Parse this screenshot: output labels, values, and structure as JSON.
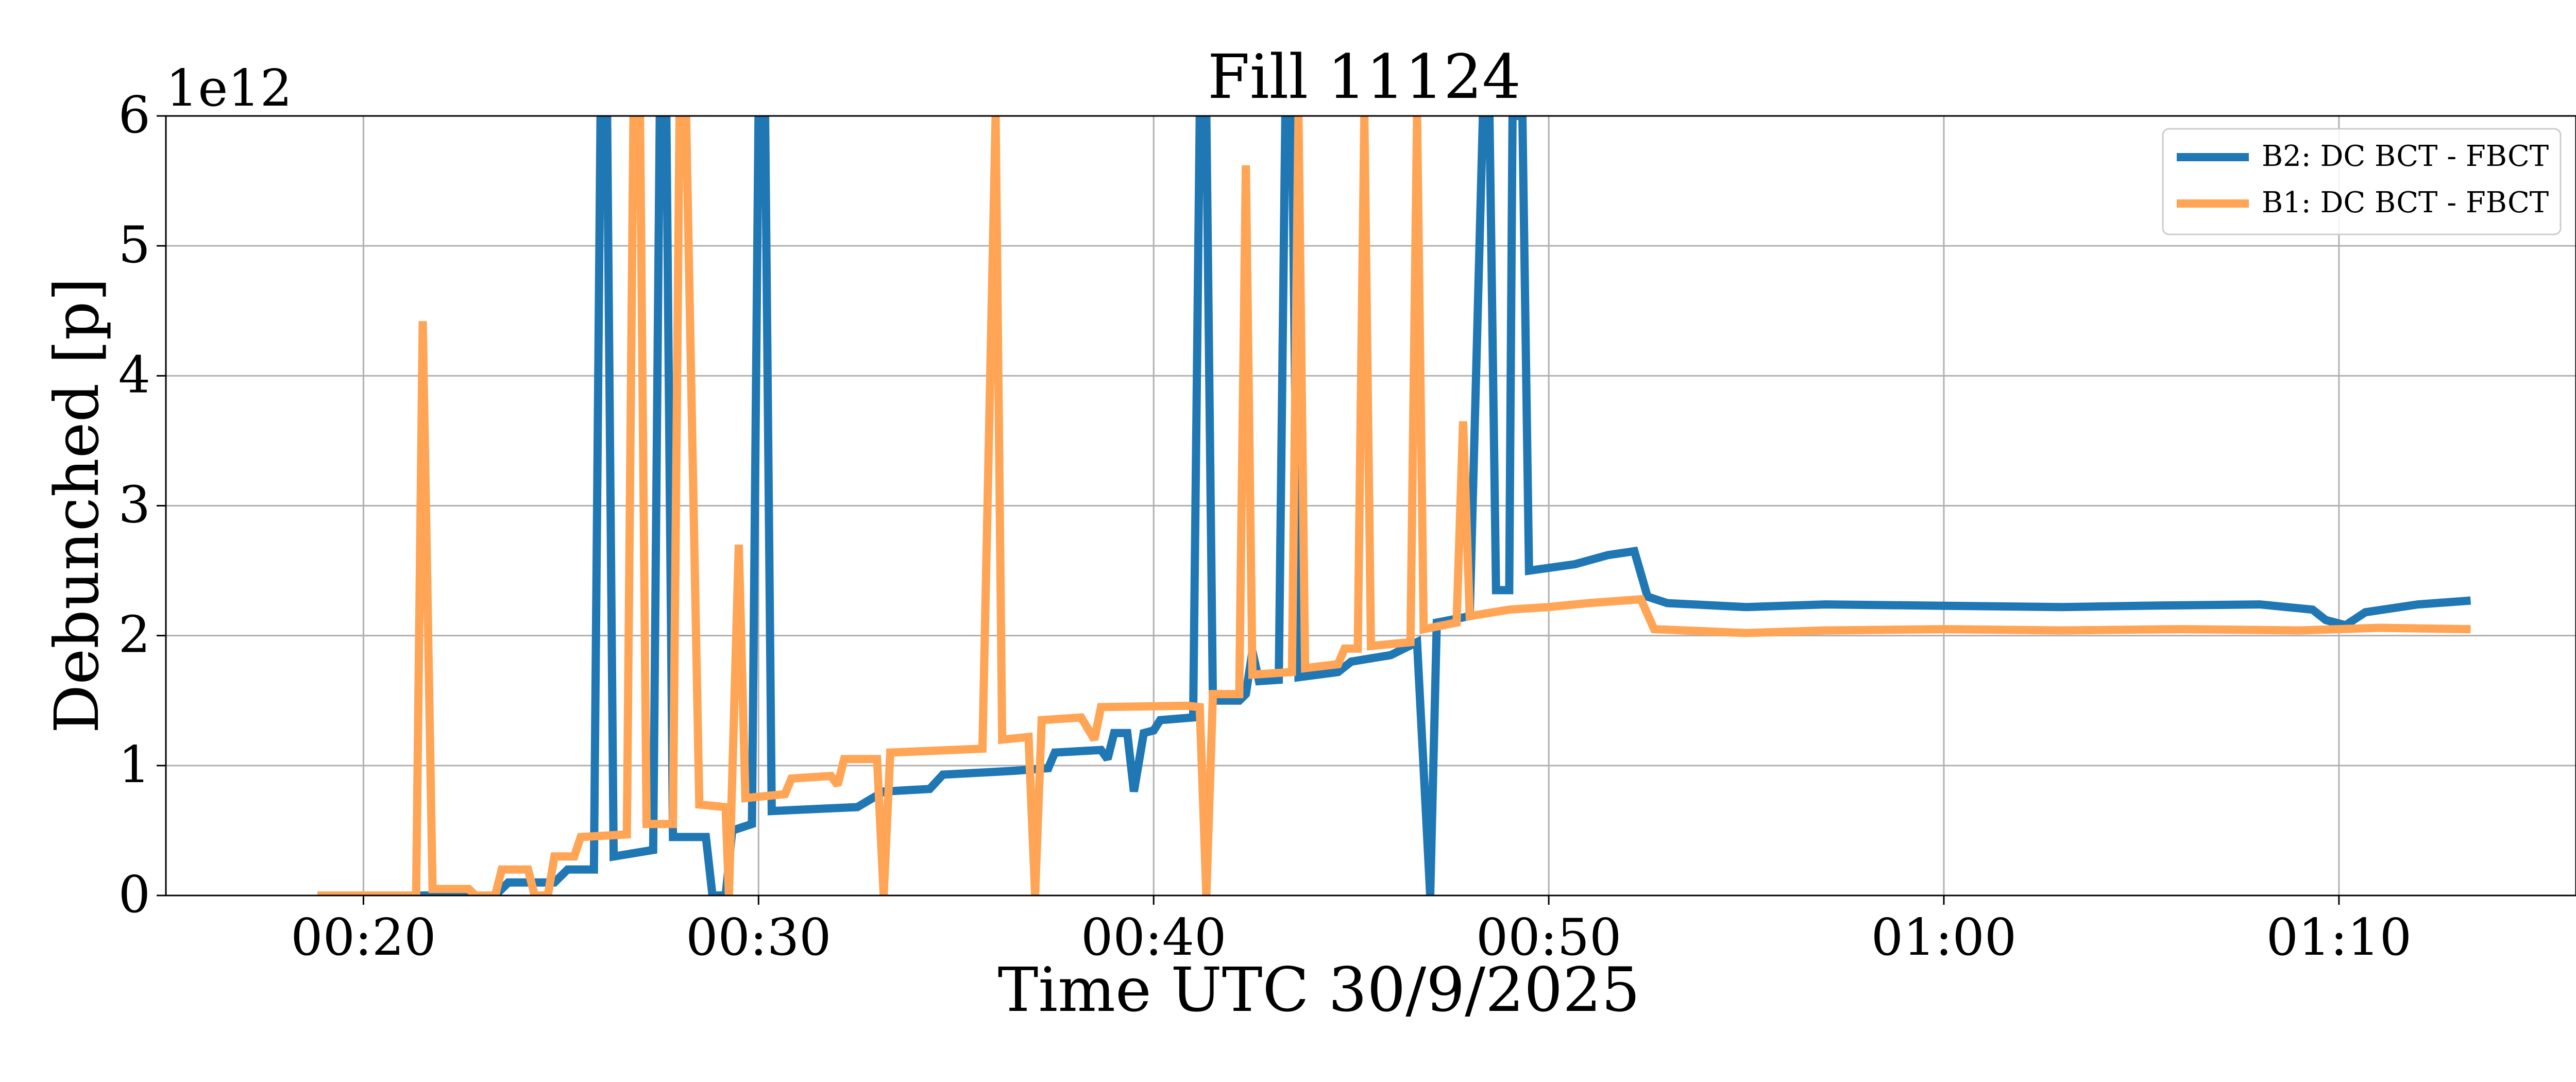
{
  "chart_data": {
    "type": "line",
    "title": "Fill 11124",
    "xlabel": "Time UTC 30/9/2025",
    "ylabel": "Debunched [p]",
    "y_offset_label": "1e12",
    "xlim": [
      "00:15",
      "01:16"
    ],
    "ylim": [
      0,
      6
    ],
    "x_ticks": [
      "00:20",
      "00:30",
      "00:40",
      "00:50",
      "01:00",
      "01:10"
    ],
    "y_ticks": [
      0,
      1,
      2,
      3,
      4,
      5,
      6
    ],
    "y_unit_scale": 1000000000000.0,
    "grid": true,
    "legend_position": "top-right",
    "series": [
      {
        "name": "B2: DC BCT - FBCT",
        "color": "#1f77b4",
        "points": [
          [
            "00:18:50",
            0.0
          ],
          [
            "00:23:20",
            0.0
          ],
          [
            "00:23:40",
            0.1
          ],
          [
            "00:24:50",
            0.1
          ],
          [
            "00:25:10",
            0.2
          ],
          [
            "00:25:50",
            0.2
          ],
          [
            "00:26:00",
            6.0
          ],
          [
            "00:26:10",
            6.0
          ],
          [
            "00:26:20",
            0.3
          ],
          [
            "00:27:20",
            0.35
          ],
          [
            "00:27:30",
            6.0
          ],
          [
            "00:27:40",
            6.0
          ],
          [
            "00:27:50",
            0.45
          ],
          [
            "00:28:40",
            0.45
          ],
          [
            "00:28:50",
            0.0
          ],
          [
            "00:29:10",
            0.0
          ],
          [
            "00:29:20",
            0.5
          ],
          [
            "00:29:50",
            0.55
          ],
          [
            "00:30:00",
            6.0
          ],
          [
            "00:30:10",
            6.0
          ],
          [
            "00:30:20",
            0.65
          ],
          [
            "00:32:30",
            0.68
          ],
          [
            "00:33:10",
            0.8
          ],
          [
            "00:34:20",
            0.82
          ],
          [
            "00:34:40",
            0.93
          ],
          [
            "00:36:30",
            0.96
          ],
          [
            "00:37:20",
            0.98
          ],
          [
            "00:37:30",
            1.1
          ],
          [
            "00:38:40",
            1.12
          ],
          [
            "00:38:50",
            1.05
          ],
          [
            "00:39:00",
            1.25
          ],
          [
            "00:39:20",
            1.25
          ],
          [
            "00:39:30",
            0.8
          ],
          [
            "00:39:45",
            1.25
          ],
          [
            "00:40:00",
            1.27
          ],
          [
            "00:40:10",
            1.35
          ],
          [
            "00:41:00",
            1.37
          ],
          [
            "00:41:10",
            6.0
          ],
          [
            "00:41:20",
            6.0
          ],
          [
            "00:41:30",
            1.5
          ],
          [
            "00:42:10",
            1.5
          ],
          [
            "00:42:20",
            1.55
          ],
          [
            "00:42:30",
            1.88
          ],
          [
            "00:42:40",
            1.65
          ],
          [
            "00:43:10",
            1.66
          ],
          [
            "00:43:20",
            6.0
          ],
          [
            "00:43:30",
            6.0
          ],
          [
            "00:43:40",
            1.68
          ],
          [
            "00:44:40",
            1.72
          ],
          [
            "00:45:00",
            1.8
          ],
          [
            "00:46:00",
            1.85
          ],
          [
            "00:46:20",
            1.9
          ],
          [
            "00:46:40",
            1.95
          ],
          [
            "00:47:00",
            0.0
          ],
          [
            "00:47:10",
            2.1
          ],
          [
            "00:48:00",
            2.15
          ],
          [
            "00:48:20",
            6.0
          ],
          [
            "00:48:30",
            6.0
          ],
          [
            "00:48:40",
            2.35
          ],
          [
            "00:49:00",
            2.35
          ],
          [
            "00:49:05",
            6.0
          ],
          [
            "00:49:20",
            6.0
          ],
          [
            "00:49:30",
            2.5
          ],
          [
            "00:50:40",
            2.55
          ],
          [
            "00:51:30",
            2.62
          ],
          [
            "00:52:10",
            2.65
          ],
          [
            "00:52:30",
            2.3
          ],
          [
            "00:53:00",
            2.25
          ],
          [
            "00:55:00",
            2.22
          ],
          [
            "00:57:00",
            2.24
          ],
          [
            "01:00:00",
            2.23
          ],
          [
            "01:03:00",
            2.22
          ],
          [
            "01:05:00",
            2.23
          ],
          [
            "01:08:00",
            2.24
          ],
          [
            "01:09:20",
            2.2
          ],
          [
            "01:09:40",
            2.12
          ],
          [
            "01:10:10",
            2.08
          ],
          [
            "01:10:40",
            2.18
          ],
          [
            "01:12:00",
            2.24
          ],
          [
            "01:13:20",
            2.27
          ]
        ]
      },
      {
        "name": "B1: DC BCT - FBCT",
        "color": "#ffa555",
        "points": [
          [
            "00:18:50",
            0.0
          ],
          [
            "00:21:20",
            0.0
          ],
          [
            "00:21:30",
            4.42
          ],
          [
            "00:21:45",
            0.05
          ],
          [
            "00:22:40",
            0.05
          ],
          [
            "00:22:50",
            0.0
          ],
          [
            "00:23:20",
            0.0
          ],
          [
            "00:23:30",
            0.2
          ],
          [
            "00:24:10",
            0.2
          ],
          [
            "00:24:20",
            0.0
          ],
          [
            "00:24:40",
            0.0
          ],
          [
            "00:24:50",
            0.3
          ],
          [
            "00:25:20",
            0.3
          ],
          [
            "00:25:30",
            0.45
          ],
          [
            "00:26:40",
            0.47
          ],
          [
            "00:26:50",
            6.0
          ],
          [
            "00:27:00",
            6.0
          ],
          [
            "00:27:10",
            0.55
          ],
          [
            "00:27:50",
            0.55
          ],
          [
            "00:28:00",
            6.0
          ],
          [
            "00:28:10",
            6.0
          ],
          [
            "00:28:30",
            0.7
          ],
          [
            "00:29:10",
            0.68
          ],
          [
            "00:29:15",
            0.0
          ],
          [
            "00:29:30",
            2.7
          ],
          [
            "00:29:40",
            0.75
          ],
          [
            "00:30:40",
            0.78
          ],
          [
            "00:30:50",
            0.9
          ],
          [
            "00:31:50",
            0.92
          ],
          [
            "00:32:00",
            0.85
          ],
          [
            "00:32:10",
            1.05
          ],
          [
            "00:33:00",
            1.05
          ],
          [
            "00:33:10",
            0.0
          ],
          [
            "00:33:20",
            1.1
          ],
          [
            "00:35:40",
            1.13
          ],
          [
            "00:36:00",
            6.0
          ],
          [
            "00:36:10",
            1.2
          ],
          [
            "00:36:50",
            1.22
          ],
          [
            "00:37:00",
            0.0
          ],
          [
            "00:37:10",
            1.35
          ],
          [
            "00:38:10",
            1.37
          ],
          [
            "00:38:30",
            1.2
          ],
          [
            "00:38:40",
            1.45
          ],
          [
            "00:40:50",
            1.46
          ],
          [
            "00:41:10",
            1.45
          ],
          [
            "00:41:20",
            0.0
          ],
          [
            "00:41:30",
            1.55
          ],
          [
            "00:42:10",
            1.55
          ],
          [
            "00:42:20",
            5.62
          ],
          [
            "00:42:30",
            1.7
          ],
          [
            "00:43:30",
            1.72
          ],
          [
            "00:43:40",
            6.0
          ],
          [
            "00:43:50",
            1.75
          ],
          [
            "00:44:40",
            1.78
          ],
          [
            "00:44:50",
            1.9
          ],
          [
            "00:45:10",
            1.9
          ],
          [
            "00:45:20",
            6.0
          ],
          [
            "00:45:30",
            1.92
          ],
          [
            "00:46:30",
            1.95
          ],
          [
            "00:46:40",
            6.0
          ],
          [
            "00:46:50",
            2.05
          ],
          [
            "00:47:40",
            2.1
          ],
          [
            "00:47:50",
            3.65
          ],
          [
            "00:48:00",
            2.15
          ],
          [
            "00:49:00",
            2.2
          ],
          [
            "00:50:00",
            2.22
          ],
          [
            "00:51:00",
            2.25
          ],
          [
            "00:52:20",
            2.28
          ],
          [
            "00:52:40",
            2.05
          ],
          [
            "00:55:00",
            2.02
          ],
          [
            "00:57:00",
            2.04
          ],
          [
            "01:00:00",
            2.05
          ],
          [
            "01:03:00",
            2.04
          ],
          [
            "01:06:00",
            2.05
          ],
          [
            "01:09:00",
            2.04
          ],
          [
            "01:11:00",
            2.06
          ],
          [
            "01:13:20",
            2.05
          ]
        ]
      }
    ]
  }
}
